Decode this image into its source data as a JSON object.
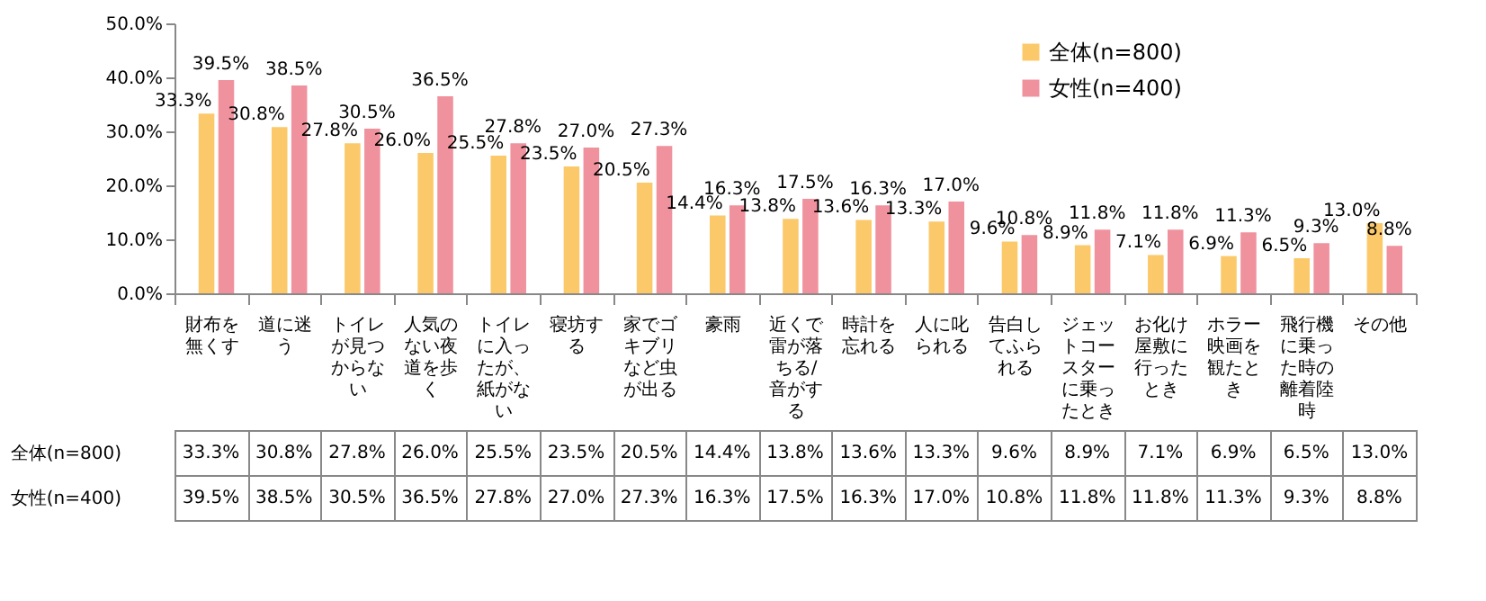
{
  "chart_data": {
    "type": "bar",
    "categories": [
      "財布を無くす",
      "道に迷う",
      "トイレが見つからない",
      "人気のない夜道を歩く",
      "トイレに入ったが、紙がない",
      "寝坊する",
      "家でゴキブリなど虫が出る",
      "豪雨",
      "近くで雷が落ちる/音がする",
      "時計を忘れる",
      "人に叱られる",
      "告白してふられる",
      "ジェットコースターに乗ったとき",
      "お化け屋敷に行ったとき",
      "ホラー映画を観たとき",
      "飛行機に乗った時の離着陸時",
      "その他"
    ],
    "series": [
      {
        "name": "全体(n=800)",
        "color": "#fcc96a",
        "values": [
          33.3,
          30.8,
          27.8,
          26.0,
          25.5,
          23.5,
          20.5,
          14.4,
          13.8,
          13.6,
          13.3,
          9.6,
          8.9,
          7.1,
          6.9,
          6.5,
          13.0
        ],
        "value_labels": [
          "33.3%",
          "30.8%",
          "27.8%",
          "26.0%",
          "25.5%",
          "23.5%",
          "20.5%",
          "14.4%",
          "13.8%",
          "13.6%",
          "13.3%",
          "9.6%",
          "8.9%",
          "7.1%",
          "6.9%",
          "6.5%",
          "13.0%"
        ]
      },
      {
        "name": "女性(n=400)",
        "color": "#f0919e",
        "values": [
          39.5,
          38.5,
          30.5,
          36.5,
          27.8,
          27.0,
          27.3,
          16.3,
          17.5,
          16.3,
          17.0,
          10.8,
          11.8,
          11.8,
          11.3,
          9.3,
          8.8
        ],
        "value_labels": [
          "39.5%",
          "38.5%",
          "30.5%",
          "36.5%",
          "27.8%",
          "27.0%",
          "27.3%",
          "16.3%",
          "17.5%",
          "16.3%",
          "17.0%",
          "10.8%",
          "11.8%",
          "11.8%",
          "11.3%",
          "9.3%",
          "8.8%"
        ]
      }
    ],
    "ylim": [
      0,
      50
    ],
    "yticks": [
      {
        "value": 0,
        "label": "0.0%"
      },
      {
        "value": 10,
        "label": "10.0%"
      },
      {
        "value": 20,
        "label": "20.0%"
      },
      {
        "value": 30,
        "label": "30.0%"
      },
      {
        "value": 40,
        "label": "40.0%"
      },
      {
        "value": 50,
        "label": "50.0%"
      }
    ],
    "legend": "top right",
    "grid": false
  }
}
